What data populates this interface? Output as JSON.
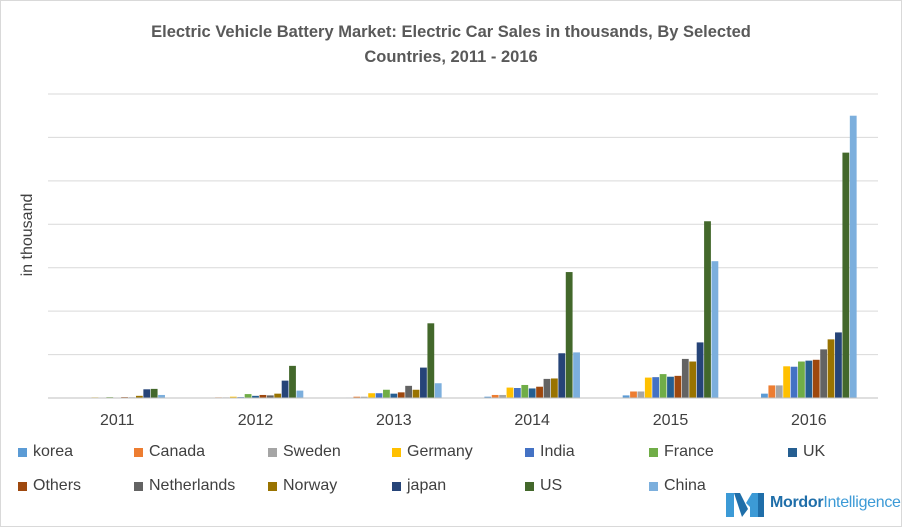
{
  "chart_data": {
    "type": "bar",
    "title": "Electric Vehicle Battery Market: Electric Car Sales in thousands, By Selected Countries, 2011 - 2016",
    "title_lines": [
      "Electric Vehicle Battery Market: Electric Car Sales in thousands, By Selected",
      "Countries, 2011 - 2016"
    ],
    "xlabel": "",
    "ylabel": "in thousand",
    "ylim": [
      0,
      700
    ],
    "gridlines": true,
    "legend_position": "bottom",
    "categories": [
      "2011",
      "2012",
      "2013",
      "2014",
      "2015",
      "2016"
    ],
    "series": [
      {
        "name": "korea",
        "color": "#5b9bd5",
        "values": [
          0.3,
          0.5,
          1.2,
          3.0,
          6.0,
          10.0
        ]
      },
      {
        "name": "Canada",
        "color": "#ed7d31",
        "values": [
          0.5,
          1.5,
          3.0,
          7.0,
          15.0,
          29.0
        ]
      },
      {
        "name": "Sweden",
        "color": "#a5a5a5",
        "values": [
          0.5,
          1.5,
          3.0,
          7.0,
          15.0,
          29.0
        ]
      },
      {
        "name": "Germany",
        "color": "#ffc000",
        "values": [
          1.5,
          3.0,
          11.0,
          24.0,
          47.0,
          73.0
        ]
      },
      {
        "name": "India",
        "color": "#4472c4",
        "values": [
          1.0,
          2.0,
          11.0,
          23.0,
          48.0,
          72.0
        ]
      },
      {
        "name": "France",
        "color": "#70ad47",
        "values": [
          2.0,
          9.0,
          19.0,
          30.0,
          55.0,
          84.0
        ]
      },
      {
        "name": "UK",
        "color": "#255e91",
        "values": [
          1.0,
          5.0,
          10.0,
          22.0,
          49.0,
          86.0
        ]
      },
      {
        "name": "Others",
        "color": "#9e480e",
        "values": [
          2.0,
          7.0,
          13.0,
          26.0,
          51.0,
          88.0
        ]
      },
      {
        "name": "Netherlands",
        "color": "#636363",
        "values": [
          1.5,
          6.0,
          28.0,
          44.0,
          90.0,
          112.0
        ]
      },
      {
        "name": "Norway",
        "color": "#997300",
        "values": [
          5.0,
          10.0,
          19.0,
          45.0,
          84.0,
          135.0
        ]
      },
      {
        "name": "japan",
        "color": "#264478",
        "values": [
          20.0,
          40.0,
          70.0,
          103.0,
          128.0,
          151.0
        ]
      },
      {
        "name": "US",
        "color": "#43682b",
        "values": [
          21.0,
          74.0,
          172.0,
          290.0,
          407.0,
          565.0
        ]
      },
      {
        "name": "China",
        "color": "#7cafdd",
        "values": [
          7.0,
          17.0,
          34.0,
          105.0,
          315.0,
          650.0
        ]
      }
    ]
  },
  "branding": {
    "brand_name": "Mordor",
    "brand_suffix": "Intelligence"
  }
}
